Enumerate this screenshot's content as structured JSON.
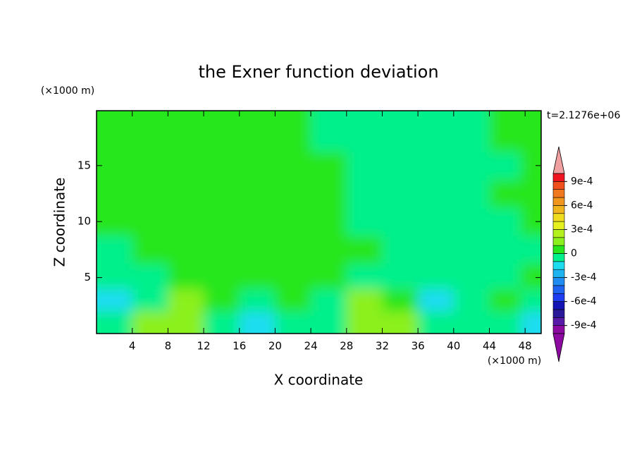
{
  "chart_data": {
    "type": "contour",
    "title": "the Exner function deviation",
    "x_label": "X coordinate",
    "y_label": "Z coordinate",
    "x_unit": "(×1000 m)",
    "y_unit": "(×1000 m)",
    "time_label": "t=2.1276e+06",
    "xlim": [
      0,
      49.8
    ],
    "ylim": [
      0,
      19.9
    ],
    "xticks": [
      4,
      8,
      12,
      16,
      20,
      24,
      28,
      32,
      36,
      40,
      44,
      48
    ],
    "yticks": [
      5,
      10,
      15
    ],
    "x": [
      2,
      6,
      10,
      14,
      18,
      22,
      26,
      30,
      34,
      38,
      42,
      46,
      49
    ],
    "y": [
      1,
      3,
      5,
      7.5,
      10,
      12.5,
      15,
      17.5,
      19.5
    ],
    "z": [
      [
        -5e-05,
        0.00015,
        0.00015,
        -5e-05,
        -0.00015,
        -5e-05,
        -5e-05,
        0.00015,
        0.00015,
        -5e-05,
        -5e-05,
        -5e-05,
        -0.00015
      ],
      [
        -0.00015,
        -5e-05,
        0.00015,
        5e-05,
        -5e-05,
        5e-05,
        -5e-05,
        0.00015,
        5e-05,
        -0.00015,
        -5e-05,
        5e-05,
        -5e-05
      ],
      [
        -5e-05,
        -5e-05,
        5e-05,
        5e-05,
        5e-05,
        5e-05,
        5e-05,
        -5e-05,
        -5e-05,
        -5e-05,
        -5e-05,
        -5e-05,
        5e-05
      ],
      [
        -5e-05,
        5e-05,
        5e-05,
        5e-05,
        5e-05,
        5e-05,
        5e-05,
        5e-05,
        -5e-05,
        -5e-05,
        -5e-05,
        -5e-05,
        -5e-05
      ],
      [
        5e-05,
        5e-05,
        5e-05,
        5e-05,
        5e-05,
        5e-05,
        5e-05,
        -5e-05,
        -5e-05,
        -5e-05,
        -5e-05,
        -5e-05,
        5e-05
      ],
      [
        5e-05,
        5e-05,
        5e-05,
        5e-05,
        5e-05,
        5e-05,
        5e-05,
        -5e-05,
        -5e-05,
        -5e-05,
        -5e-05,
        5e-05,
        5e-05
      ],
      [
        5e-05,
        5e-05,
        5e-05,
        5e-05,
        5e-05,
        5e-05,
        5e-05,
        -5e-05,
        -5e-05,
        -5e-05,
        -5e-05,
        -5e-05,
        5e-05
      ],
      [
        5e-05,
        5e-05,
        5e-05,
        5e-05,
        5e-05,
        5e-05,
        -5e-05,
        -5e-05,
        -5e-05,
        -5e-05,
        -5e-05,
        5e-05,
        5e-05
      ],
      [
        5e-05,
        5e-05,
        5e-05,
        5e-05,
        5e-05,
        5e-05,
        -5e-05,
        -5e-05,
        -5e-05,
        -5e-05,
        -5e-05,
        5e-05,
        5e-05
      ]
    ],
    "levels": [
      -0.001,
      -0.0009,
      -0.0008,
      -0.0007,
      -0.0006,
      -0.0005,
      -0.0004,
      -0.0003,
      -0.0002,
      -0.0001,
      0,
      0.0001,
      0.0002,
      0.0003,
      0.0004,
      0.0005,
      0.0006,
      0.0007,
      0.0008,
      0.0009,
      0.001
    ],
    "colors": [
      "#8c0aa0",
      "#5a1aa8",
      "#2a1a9a",
      "#1414b4",
      "#1e3cf0",
      "#1e64f0",
      "#1e8cf0",
      "#1eb4f0",
      "#1edcf0",
      "#00f08c",
      "#28e61e",
      "#8cf01e",
      "#b4f01e",
      "#e6f01e",
      "#f0dc1e",
      "#f0b41e",
      "#f0961e",
      "#f0781e",
      "#f0501e",
      "#f0141e"
    ],
    "under_color": "#8c0aa0",
    "over_color": "#f0a0a0",
    "colorbar_ticks": [
      {
        "value": 0.0009,
        "label": "9e-4"
      },
      {
        "value": 0.0006,
        "label": "6e-4"
      },
      {
        "value": 0.0003,
        "label": "3e-4"
      },
      0,
      {
        "value": -0.0003,
        "label": "-3e-4"
      },
      {
        "value": -0.0006,
        "label": "-6e-4"
      },
      {
        "value": -0.0009,
        "label": "-9e-4"
      }
    ]
  }
}
